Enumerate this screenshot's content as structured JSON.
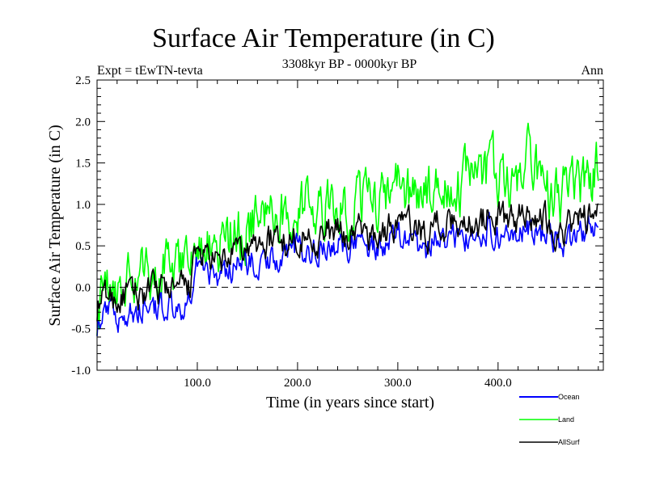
{
  "chart_data": {
    "type": "line",
    "title": "Surface Air Temperature (in C)",
    "subtitle": "3308kyr BP - 0000kyr BP",
    "left_label": "Expt = tEwTN-tevta",
    "right_label": "Ann",
    "xlabel": "Time (in years since start)",
    "ylabel": "Surface Air Temperature (in C)",
    "xlim": [
      0,
      505
    ],
    "ylim": [
      -1.0,
      2.5
    ],
    "x_ticks": [
      100,
      200,
      300,
      400
    ],
    "x_tick_labels": [
      "100.0",
      "200.0",
      "300.0",
      "400.0"
    ],
    "x_minor_step": 20,
    "y_ticks": [
      -1.0,
      -0.5,
      0.0,
      0.5,
      1.0,
      1.5,
      2.0,
      2.5
    ],
    "y_tick_labels": [
      "-1.0",
      "-0.5",
      "0.0",
      "0.5",
      "1.0",
      "1.5",
      "2.0",
      "2.5"
    ],
    "y_minor_step": 0.1,
    "reference_line": {
      "y": 0.0,
      "style": "dashed"
    },
    "grid": false,
    "legend_position": "bottom-right",
    "x": [
      0,
      10,
      20,
      30,
      40,
      50,
      60,
      70,
      80,
      90,
      100,
      110,
      120,
      130,
      140,
      150,
      160,
      170,
      180,
      190,
      200,
      210,
      220,
      230,
      240,
      250,
      260,
      270,
      280,
      290,
      300,
      310,
      320,
      330,
      340,
      350,
      360,
      370,
      380,
      390,
      400,
      410,
      420,
      430,
      440,
      450,
      460,
      470,
      480,
      490,
      500
    ],
    "series": [
      {
        "name": "Ocean",
        "color": "#0000ff",
        "values": [
          -0.45,
          -0.25,
          -0.35,
          -0.3,
          -0.25,
          -0.2,
          -0.25,
          -0.2,
          -0.3,
          -0.25,
          0.25,
          0.2,
          0.1,
          0.2,
          0.25,
          0.3,
          0.3,
          0.35,
          0.4,
          0.35,
          0.5,
          0.45,
          0.45,
          0.5,
          0.5,
          0.45,
          0.55,
          0.5,
          0.45,
          0.55,
          0.6,
          0.55,
          0.5,
          0.45,
          0.6,
          0.55,
          0.6,
          0.6,
          0.55,
          0.7,
          0.65,
          0.6,
          0.65,
          0.7,
          0.65,
          0.6,
          0.5,
          0.6,
          0.65,
          0.7,
          0.8
        ]
      },
      {
        "name": "Land",
        "color": "#00ff00",
        "values": [
          -0.3,
          0.1,
          0.05,
          0.1,
          0.1,
          0.15,
          0.2,
          0.2,
          0.15,
          0.15,
          0.6,
          0.55,
          0.45,
          0.6,
          0.65,
          0.7,
          0.8,
          0.85,
          0.9,
          0.85,
          1.0,
          0.95,
          0.95,
          1.0,
          1.0,
          0.95,
          1.05,
          1.0,
          1.0,
          1.05,
          1.15,
          1.1,
          1.1,
          1.05,
          1.2,
          1.15,
          1.2,
          1.25,
          1.2,
          1.4,
          1.3,
          1.25,
          1.3,
          1.5,
          1.3,
          1.2,
          1.05,
          1.15,
          1.25,
          1.3,
          1.45
        ]
      },
      {
        "name": "AllSurf",
        "color": "#000000",
        "values": [
          -0.25,
          -0.1,
          -0.15,
          -0.1,
          -0.1,
          -0.05,
          -0.05,
          0.0,
          -0.05,
          -0.05,
          0.4,
          0.35,
          0.25,
          0.35,
          0.4,
          0.45,
          0.5,
          0.55,
          0.6,
          0.55,
          0.65,
          0.6,
          0.6,
          0.65,
          0.65,
          0.6,
          0.7,
          0.65,
          0.6,
          0.7,
          0.8,
          0.75,
          0.7,
          0.65,
          0.8,
          0.75,
          0.8,
          0.8,
          0.75,
          0.9,
          0.85,
          0.8,
          0.85,
          0.95,
          0.85,
          0.8,
          0.65,
          0.75,
          0.8,
          0.85,
          0.95
        ]
      }
    ]
  }
}
